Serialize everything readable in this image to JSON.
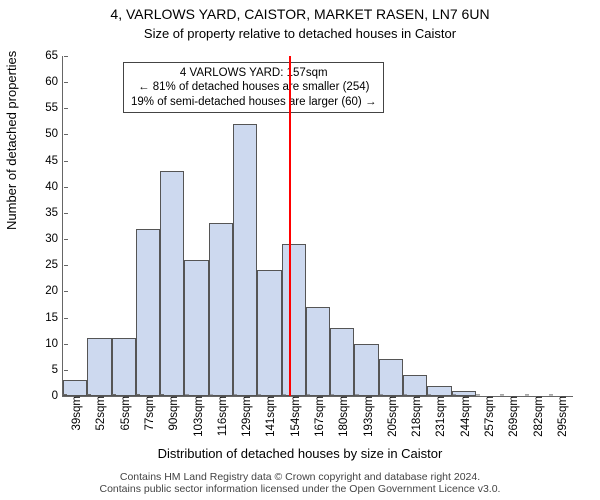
{
  "chart": {
    "type": "histogram",
    "title": "4, VARLOWS YARD, CAISTOR, MARKET RASEN, LN7 6UN",
    "subtitle": "Size of property relative to detached houses in Caistor",
    "ylabel": "Number of detached properties",
    "xlabel": "Distribution of detached houses by size in Caistor",
    "ylim_max": 65,
    "ytick_step": 5,
    "y_ticks": [
      0,
      5,
      10,
      15,
      20,
      25,
      30,
      35,
      40,
      45,
      50,
      55,
      60,
      65
    ],
    "x_categories": [
      "39sqm",
      "52sqm",
      "65sqm",
      "77sqm",
      "90sqm",
      "103sqm",
      "116sqm",
      "129sqm",
      "141sqm",
      "154sqm",
      "167sqm",
      "180sqm",
      "193sqm",
      "205sqm",
      "218sqm",
      "231sqm",
      "244sqm",
      "257sqm",
      "269sqm",
      "282sqm",
      "295sqm"
    ],
    "values": [
      3,
      11,
      11,
      32,
      43,
      26,
      33,
      52,
      24,
      29,
      17,
      13,
      10,
      7,
      4,
      2,
      1,
      0,
      0,
      0,
      0
    ],
    "bar_fill": "#cdd9ef",
    "bar_border": "#555555",
    "plot_bg": "#ffffff",
    "marker": {
      "color": "#ff0000",
      "category_index": 9.3
    },
    "annotation": {
      "line1": "4 VARLOWS YARD: 157sqm",
      "line2": "← 81% of detached houses are smaller (254)",
      "line3": "19% of semi-detached houses are larger (60) →"
    },
    "footer_line1": "Contains HM Land Registry data © Crown copyright and database right 2024.",
    "footer_line2": "Contains public sector information licensed under the Open Government Licence v3.0."
  }
}
